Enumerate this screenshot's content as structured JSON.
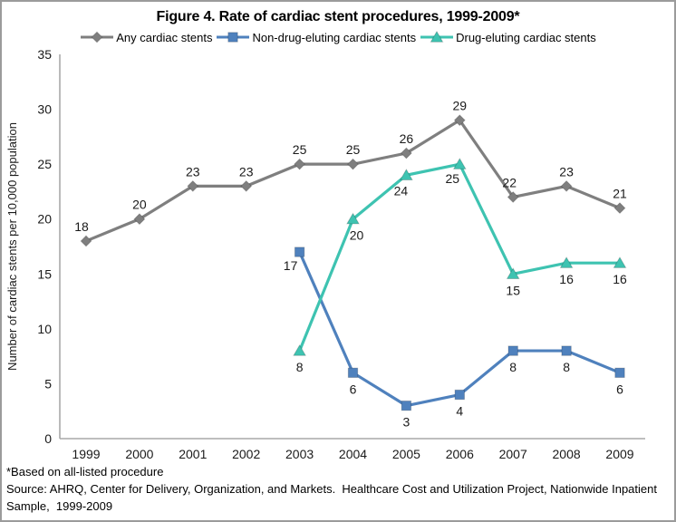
{
  "figure": {
    "title": "Figure 4. Rate of cardiac stent procedures, 1999-2009*",
    "footnote": "*Based on all-listed procedure",
    "source": "Source: AHRQ, Center for Delivery, Organization, and Markets.  Healthcare Cost and Utilization Project, Nationwide Inpatient Sample,  1999-2009"
  },
  "chart_data": {
    "type": "line",
    "title": "Figure 4. Rate of cardiac stent procedures, 1999-2009*",
    "categories": [
      "1999",
      "2000",
      "2001",
      "2002",
      "2003",
      "2004",
      "2005",
      "2006",
      "2007",
      "2008",
      "2009"
    ],
    "series": [
      {
        "name": "Any cardiac stents",
        "color": "#7f7f7f",
        "marker": "diamond",
        "label_side": "above",
        "values": [
          18,
          20,
          23,
          23,
          25,
          25,
          26,
          29,
          22,
          23,
          21
        ],
        "label_offsets": {
          "0": {
            "dx": -5,
            "dy": 0
          },
          "8": {
            "dx": -4,
            "dy": 0
          }
        }
      },
      {
        "name": "Non-drug-eluting cardiac stents",
        "color": "#4f81bd",
        "marker": "square",
        "label_side": "below",
        "values": [
          null,
          null,
          null,
          null,
          17,
          6,
          3,
          4,
          8,
          8,
          6
        ],
        "label_offsets": {
          "4": {
            "dx": -10,
            "dy": -3
          }
        }
      },
      {
        "name": "Drug-eluting cardiac stents",
        "color": "#3ec3b1",
        "marker": "triangle",
        "label_side": "below",
        "values": [
          null,
          null,
          null,
          null,
          8,
          20,
          24,
          25,
          15,
          16,
          16
        ],
        "label_offsets": {
          "5": {
            "dx": 4,
            "dy": 0
          },
          "6": {
            "dx": -6,
            "dy": -1
          },
          "7": {
            "dx": -8,
            "dy": -2
          }
        }
      }
    ],
    "xlabel": "",
    "ylabel": "Number of cardiac stents per 10,000 population",
    "ylim": [
      0,
      35
    ],
    "ytick_step": 5,
    "grid": false,
    "legend_position": "top",
    "axis_color": "#a8a8a8",
    "text_color": "#1a1a1a"
  }
}
